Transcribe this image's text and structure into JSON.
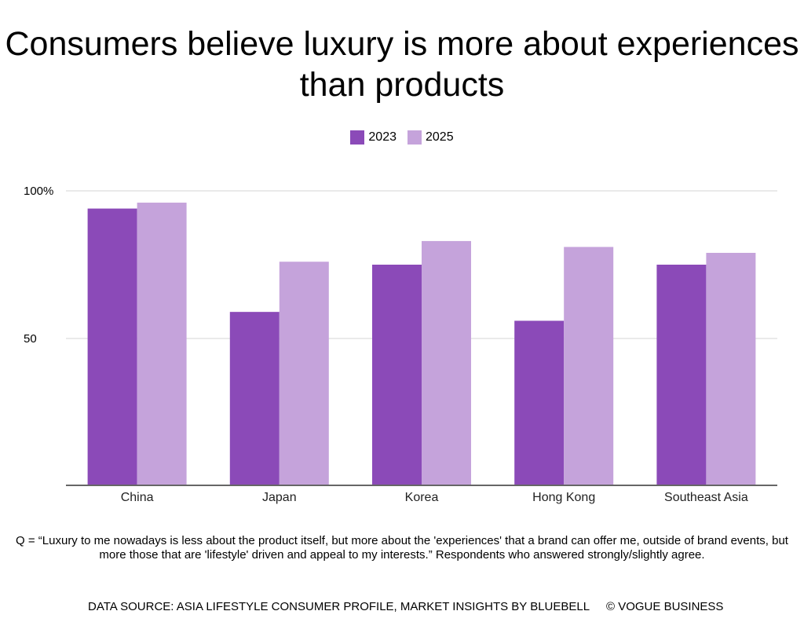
{
  "chart_data": {
    "type": "bar",
    "title": "Consumers believe luxury is more about experiences than products",
    "categories": [
      "China",
      "Japan",
      "Korea",
      "Hong Kong",
      "Southeast Asia"
    ],
    "series": [
      {
        "name": "2023",
        "color": "#8b4ab8",
        "values": [
          94,
          59,
          75,
          56,
          75
        ]
      },
      {
        "name": "2025",
        "color": "#c5a3db",
        "values": [
          96,
          76,
          83,
          81,
          79
        ]
      }
    ],
    "yticks": [
      {
        "value": 100,
        "label": "100%"
      },
      {
        "value": 50,
        "label": "50"
      }
    ],
    "ylim": [
      0,
      100
    ],
    "grid": true,
    "legend_position": "top-center",
    "xlabel": "",
    "ylabel": ""
  },
  "note": "Q = “Luxury to me nowadays is less about the product itself, but more about the 'experiences' that a brand can offer me, outside of brand events, but more those that are 'lifestyle' driven and appeal to my interests.” Respondents who answered strongly/slightly agree.",
  "source": "DATA SOURCE: ASIA LIFESTYLE CONSUMER PROFILE, MARKET INSIGHTS BY BLUEBELL",
  "copyright": "© VOGUE BUSINESS"
}
